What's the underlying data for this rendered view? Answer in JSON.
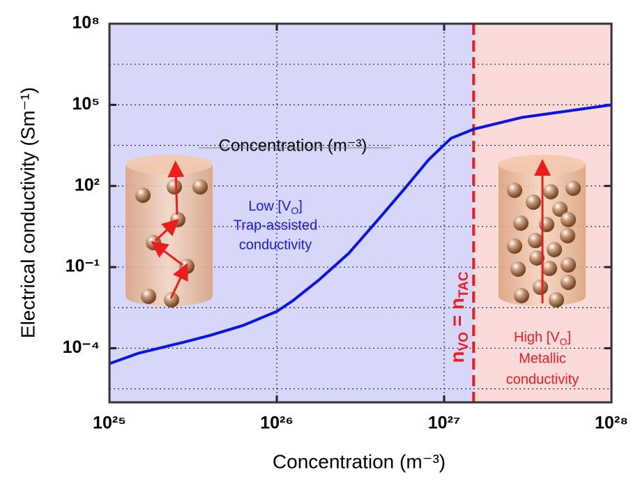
{
  "chart_data": {
    "type": "line",
    "x_label": "Concentration (m⁻³)",
    "y_label": "Electrical conductivity (Sm⁻¹)",
    "log_x": true,
    "log_y": true,
    "grid": true,
    "xlim": [
      1e+25,
      1e+28
    ],
    "xticks": [
      {
        "value": 1e+25,
        "label": "10²⁵"
      },
      {
        "value": 1e+26,
        "label": "10²⁶"
      },
      {
        "value": 1e+27,
        "label": "10²⁷"
      },
      {
        "value": 1e+28,
        "label": "10²⁸"
      }
    ],
    "ylim": [
      1e-06,
      100000000.0
    ],
    "yticks": [
      {
        "value": 0.0001,
        "label": "10⁻⁴"
      },
      {
        "value": 0.1,
        "label": "10⁻¹"
      },
      {
        "value": 100,
        "label": "10²"
      },
      {
        "value": 100000,
        "label": "10⁵"
      },
      {
        "value": 100000000.0,
        "label": "10⁸"
      }
    ],
    "yminor": [
      3.1623e-06,
      0.0031623,
      3.1623,
      3162.3,
      3162277.7
    ],
    "x": [
      1e+25,
      1.5e+25,
      2.7e+25,
      4e+25,
      6.3e+25,
      1e+26,
      1.25e+26,
      1.8e+26,
      2.7e+26,
      4e+26,
      5.8e+26,
      8.1e+26,
      1.1e+27,
      1.5e+27,
      2.9e+27,
      1e+28
    ],
    "series": [
      {
        "color": "#0a14e6",
        "values": [
          2.7e-05,
          6.6e-05,
          0.00016,
          0.0003,
          0.0007,
          0.0023,
          0.0058,
          0.035,
          0.33,
          5.4,
          79,
          950,
          5800,
          12600,
          34000,
          100000
        ]
      }
    ],
    "threshold": {
      "value": 1.5e+27,
      "color": "#ee1c1c",
      "label": {
        "main1": "n",
        "sub1": "VO",
        "main2": " = n",
        "sub2": "TAC"
      }
    },
    "regions": {
      "left_color": "#d7d7fa",
      "right_color": "#fbdada"
    },
    "annotations": {
      "inner_title": "Concentration (m⁻³)",
      "low": {
        "line1a": "Low [V",
        "line1sub": "O",
        "line1b": "]",
        "line2": "Trap-assisted",
        "line3": "conductivity"
      },
      "high": {
        "line1a": "High [V",
        "line1sub": "O",
        "line1b": "]",
        "line2": "Metallic",
        "line3": "conductivity"
      }
    }
  }
}
